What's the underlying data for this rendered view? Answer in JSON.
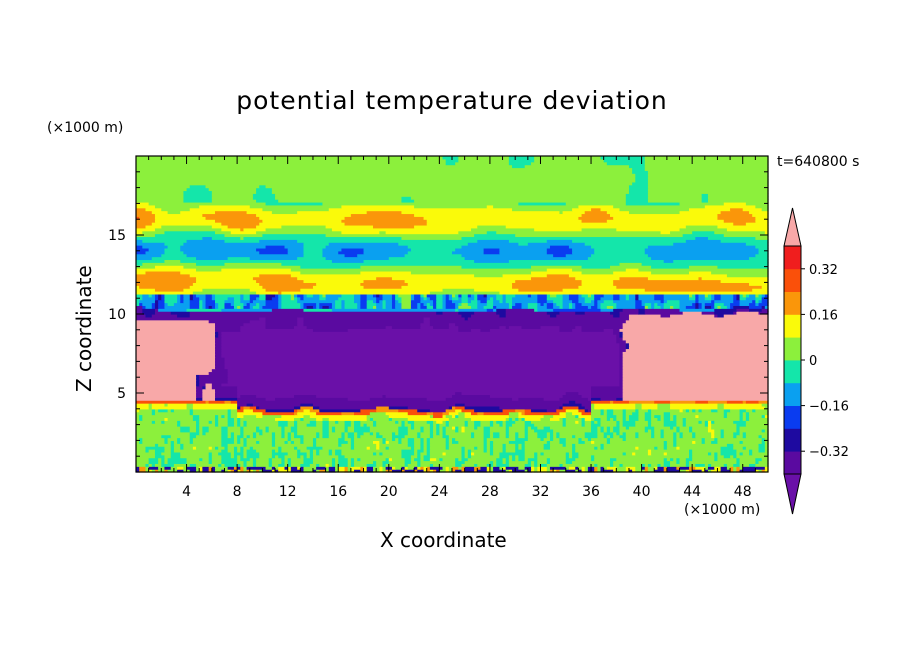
{
  "chart_data": {
    "type": "heatmap",
    "title": "potential temperature deviation",
    "xlabel": "X coordinate",
    "ylabel": "Z coordinate",
    "x_unit": "(×1000 m)",
    "y_unit": "(×1000 m)",
    "time_label": "t=640800 s",
    "xlim": [
      0,
      50
    ],
    "ylim": [
      0,
      20
    ],
    "x_ticks": [
      4,
      8,
      12,
      16,
      20,
      24,
      28,
      32,
      36,
      40,
      44,
      48
    ],
    "y_ticks": [
      5,
      10,
      15
    ],
    "colorbar": {
      "labels": [
        "0.32",
        "0.16",
        "0",
        "−0.16",
        "−0.32"
      ],
      "label_values": [
        0.32,
        0.16,
        0,
        -0.16,
        -0.32
      ],
      "levels": [
        -0.4,
        -0.32,
        -0.24,
        -0.16,
        -0.08,
        0,
        0.08,
        0.16,
        0.24,
        0.32,
        0.4
      ],
      "colors": [
        "#5a0aa0",
        "#1e0aa0",
        "#0a3cf0",
        "#0aa0f0",
        "#14e6aa",
        "#8cf03c",
        "#fafa0a",
        "#fa960a",
        "#fa500a",
        "#f01e1e"
      ],
      "over_color": "#f8a8a8",
      "under_color": "#6a10a8"
    },
    "field_description": {
      "cold_pool_region": {
        "x": [
          5,
          38
        ],
        "z": [
          4,
          10.5
        ],
        "value": "< -0.4"
      },
      "warm_regions": [
        {
          "x": [
            0,
            5.5
          ],
          "z": [
            4.6,
            9.5
          ]
        },
        {
          "x": [
            38.5,
            50
          ],
          "z": [
            4.6,
            10
          ]
        }
      ],
      "lower_layer": {
        "z": [
          0,
          4
        ],
        "value_range": [
          -0.08,
          0.16
        ]
      },
      "upper_layer": {
        "z": [
          11,
          20
        ],
        "value_range": [
          -0.2,
          0.3
        ]
      }
    }
  }
}
